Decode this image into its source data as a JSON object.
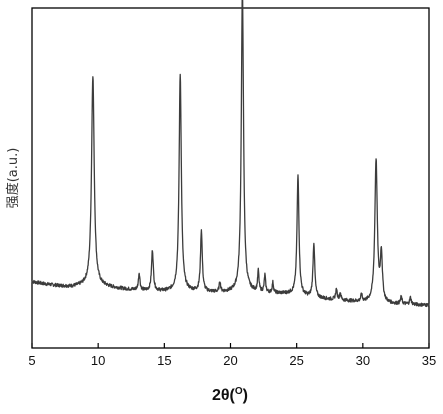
{
  "chart_data": {
    "type": "line",
    "title": "",
    "xlabel_prefix": "2θ(",
    "xlabel_sup": "O",
    "xlabel_suffix": ")",
    "ylabel": "强度(a.u.)",
    "xlim": [
      5,
      35
    ],
    "ylim": [
      0,
      100
    ],
    "x_ticks": [
      5,
      10,
      15,
      20,
      25,
      30,
      35
    ],
    "y_ticks_shown": false,
    "grid": false,
    "legend": "none",
    "colors": {
      "line": "#3c3c3c",
      "axis": "#000000"
    },
    "baseline": [
      [
        5.0,
        19.5
      ],
      [
        6.0,
        18.8
      ],
      [
        7.0,
        18.3
      ],
      [
        8.0,
        18.0
      ],
      [
        9.0,
        18.3
      ],
      [
        10.5,
        18.0
      ],
      [
        12.0,
        17.3
      ],
      [
        13.5,
        16.8
      ],
      [
        15.0,
        16.6
      ],
      [
        17.0,
        16.6
      ],
      [
        19.0,
        16.3
      ],
      [
        20.0,
        16.3
      ],
      [
        21.5,
        16.4
      ],
      [
        23.0,
        16.1
      ],
      [
        24.5,
        15.9
      ],
      [
        26.0,
        14.9
      ],
      [
        27.5,
        14.3
      ],
      [
        29.0,
        13.8
      ],
      [
        30.5,
        13.4
      ],
      [
        32.0,
        13.0
      ],
      [
        33.5,
        12.8
      ],
      [
        35.0,
        12.6
      ]
    ],
    "peaks": [
      {
        "x": 9.6,
        "height": 62,
        "width": 0.12
      },
      {
        "x": 13.1,
        "height": 5,
        "width": 0.07
      },
      {
        "x": 14.1,
        "height": 12,
        "width": 0.08
      },
      {
        "x": 16.2,
        "height": 64,
        "width": 0.1
      },
      {
        "x": 17.8,
        "height": 18,
        "width": 0.08
      },
      {
        "x": 19.2,
        "height": 3,
        "width": 0.06
      },
      {
        "x": 20.9,
        "height": 89,
        "width": 0.1
      },
      {
        "x": 22.1,
        "height": 6,
        "width": 0.06
      },
      {
        "x": 22.6,
        "height": 5,
        "width": 0.06
      },
      {
        "x": 23.2,
        "height": 3,
        "width": 0.06
      },
      {
        "x": 25.1,
        "height": 35,
        "width": 0.09
      },
      {
        "x": 26.3,
        "height": 16,
        "width": 0.08
      },
      {
        "x": 28.0,
        "height": 3,
        "width": 0.07
      },
      {
        "x": 28.3,
        "height": 2,
        "width": 0.06
      },
      {
        "x": 29.9,
        "height": 2,
        "width": 0.06
      },
      {
        "x": 31.0,
        "height": 42,
        "width": 0.11
      },
      {
        "x": 31.4,
        "height": 14,
        "width": 0.09
      },
      {
        "x": 32.9,
        "height": 2,
        "width": 0.07
      },
      {
        "x": 33.6,
        "height": 2,
        "width": 0.07
      }
    ]
  }
}
